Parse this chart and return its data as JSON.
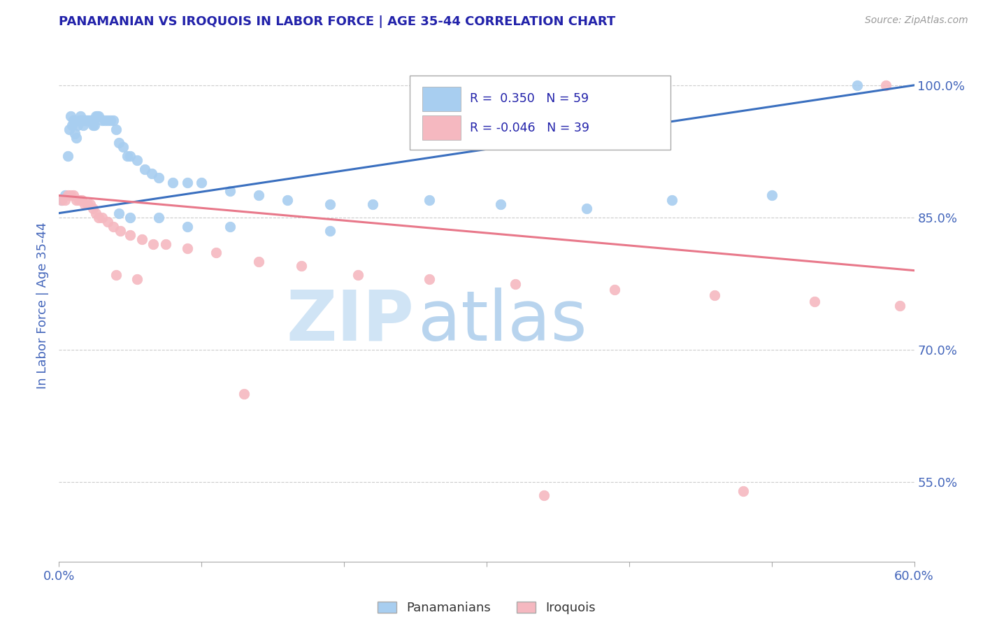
{
  "title": "PANAMANIAN VS IROQUOIS IN LABOR FORCE | AGE 35-44 CORRELATION CHART",
  "source_text": "Source: ZipAtlas.com",
  "ylabel": "In Labor Force | Age 35-44",
  "xlim": [
    0.0,
    0.6
  ],
  "ylim": [
    0.46,
    1.04
  ],
  "xticks": [
    0.0,
    0.1,
    0.2,
    0.3,
    0.4,
    0.5,
    0.6
  ],
  "xticklabels": [
    "0.0%",
    "",
    "",
    "",
    "",
    "",
    "60.0%"
  ],
  "yticks_right": [
    0.55,
    0.7,
    0.85,
    1.0
  ],
  "ytick_right_labels": [
    "55.0%",
    "70.0%",
    "85.0%",
    "100.0%"
  ],
  "blue_color": "#A8CEF0",
  "pink_color": "#F5B8C0",
  "blue_line_color": "#3A6FBF",
  "pink_line_color": "#E8788A",
  "grid_color": "#CCCCCC",
  "background_color": "#FFFFFF",
  "title_color": "#2222AA",
  "axis_label_color": "#4466BB",
  "tick_label_color": "#4466BB",
  "blue_points_x": [
    0.002,
    0.004,
    0.006,
    0.007,
    0.008,
    0.009,
    0.01,
    0.011,
    0.012,
    0.013,
    0.014,
    0.015,
    0.016,
    0.017,
    0.018,
    0.019,
    0.02,
    0.021,
    0.022,
    0.023,
    0.024,
    0.025,
    0.026,
    0.027,
    0.028,
    0.03,
    0.032,
    0.034,
    0.036,
    0.038,
    0.04,
    0.042,
    0.045,
    0.048,
    0.05,
    0.055,
    0.06,
    0.065,
    0.07,
    0.08,
    0.09,
    0.1,
    0.12,
    0.14,
    0.16,
    0.19,
    0.22,
    0.26,
    0.31,
    0.37,
    0.43,
    0.5,
    0.042,
    0.05,
    0.07,
    0.09,
    0.12,
    0.19,
    0.56
  ],
  "blue_points_y": [
    0.87,
    0.875,
    0.92,
    0.95,
    0.965,
    0.955,
    0.96,
    0.945,
    0.94,
    0.955,
    0.96,
    0.965,
    0.96,
    0.955,
    0.96,
    0.96,
    0.96,
    0.96,
    0.96,
    0.96,
    0.955,
    0.955,
    0.965,
    0.965,
    0.965,
    0.96,
    0.96,
    0.96,
    0.96,
    0.96,
    0.95,
    0.935,
    0.93,
    0.92,
    0.92,
    0.915,
    0.905,
    0.9,
    0.895,
    0.89,
    0.89,
    0.89,
    0.88,
    0.875,
    0.87,
    0.865,
    0.865,
    0.87,
    0.865,
    0.86,
    0.87,
    0.875,
    0.855,
    0.85,
    0.85,
    0.84,
    0.84,
    0.835,
    1.0
  ],
  "pink_points_x": [
    0.002,
    0.004,
    0.006,
    0.008,
    0.01,
    0.012,
    0.014,
    0.016,
    0.018,
    0.02,
    0.022,
    0.024,
    0.026,
    0.028,
    0.03,
    0.034,
    0.038,
    0.043,
    0.05,
    0.058,
    0.066,
    0.075,
    0.09,
    0.11,
    0.14,
    0.17,
    0.21,
    0.26,
    0.32,
    0.39,
    0.46,
    0.53,
    0.59,
    0.04,
    0.055,
    0.13,
    0.34,
    0.48,
    0.58
  ],
  "pink_points_y": [
    0.87,
    0.87,
    0.875,
    0.875,
    0.875,
    0.87,
    0.87,
    0.87,
    0.865,
    0.865,
    0.865,
    0.86,
    0.855,
    0.85,
    0.85,
    0.845,
    0.84,
    0.835,
    0.83,
    0.825,
    0.82,
    0.82,
    0.815,
    0.81,
    0.8,
    0.795,
    0.785,
    0.78,
    0.775,
    0.768,
    0.762,
    0.755,
    0.75,
    0.785,
    0.78,
    0.65,
    0.535,
    0.54,
    1.0
  ],
  "blue_trend_x0": 0.0,
  "blue_trend_x1": 0.6,
  "blue_trend_y0": 0.855,
  "blue_trend_y1": 1.0,
  "pink_trend_x0": 0.0,
  "pink_trend_x1": 0.6,
  "pink_trend_y0": 0.875,
  "pink_trend_y1": 0.79
}
